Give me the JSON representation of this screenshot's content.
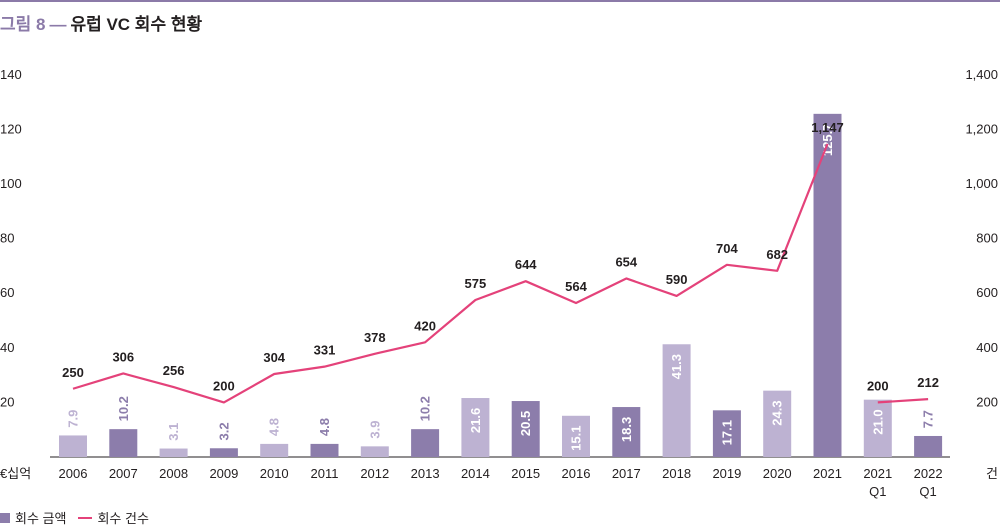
{
  "figure": {
    "label": "그림 8",
    "dash": "—",
    "title": "유럽 VC 회수 현황"
  },
  "legend": {
    "bar_label": "회수 금액",
    "line_label": "회수 건수"
  },
  "colors": {
    "bar_dark": "#8c7dab",
    "bar_light": "#bdb2d2",
    "line": "#e4427a",
    "accent": "#8b7aa8",
    "axis": "#231f20"
  },
  "chart_data": {
    "type": "bar",
    "categories": [
      "2006",
      "2007",
      "2008",
      "2009",
      "2010",
      "2011",
      "2012",
      "2013",
      "2014",
      "2015",
      "2016",
      "2017",
      "2018",
      "2019",
      "2020",
      "2021",
      "2021\nQ1",
      "2022\nQ1"
    ],
    "series": [
      {
        "name": "회수 금액",
        "type": "bar",
        "axis": "left",
        "values": [
          7.9,
          10.2,
          3.1,
          3.2,
          4.8,
          4.8,
          3.9,
          10.2,
          21.6,
          20.5,
          15.1,
          18.3,
          41.3,
          17.1,
          24.3,
          125.7,
          21.0,
          7.7
        ],
        "labels": [
          "7.9",
          "10.2",
          "3.1",
          "3.2",
          "4.8",
          "4.8",
          "3.9",
          "10.2",
          "21.6",
          "20.5",
          "15.1",
          "18.3",
          "41.3",
          "17.1",
          "24.3",
          "125.7",
          "21.0",
          "7.7"
        ],
        "shade": [
          "light",
          "dark",
          "light",
          "dark",
          "light",
          "dark",
          "light",
          "dark",
          "light",
          "dark",
          "light",
          "dark",
          "light",
          "dark",
          "light",
          "dark",
          "light",
          "dark"
        ]
      },
      {
        "name": "회수 건수",
        "type": "line",
        "axis": "right",
        "values": [
          250,
          306,
          256,
          200,
          304,
          331,
          378,
          420,
          575,
          644,
          564,
          654,
          590,
          704,
          682,
          1147,
          200,
          212
        ],
        "labels": [
          "250",
          "306",
          "256",
          "200",
          "304",
          "331",
          "378",
          "420",
          "575",
          "644",
          "564",
          "654",
          "590",
          "704",
          "682",
          "1,147",
          "200",
          "212"
        ],
        "segments": [
          [
            0,
            15
          ],
          [
            16,
            17
          ]
        ]
      }
    ],
    "y_left": {
      "unit": "€십억",
      "ticks": [
        "20",
        "40",
        "60",
        "80",
        "100",
        "120",
        "140"
      ],
      "lim": [
        0,
        140
      ]
    },
    "y_right": {
      "unit": "건",
      "ticks": [
        "200",
        "400",
        "600",
        "800",
        "1,000",
        "1,200",
        "1,400"
      ],
      "lim": [
        0,
        1400
      ]
    },
    "legend_position": "bottom-left",
    "grid": false
  }
}
